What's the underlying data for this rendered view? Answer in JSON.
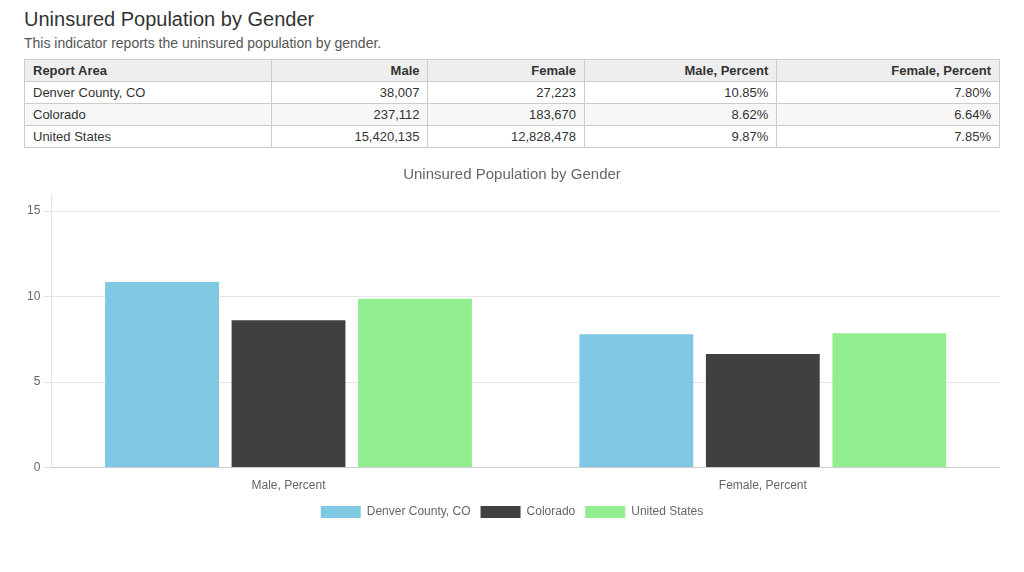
{
  "title": "Uninsured Population by Gender",
  "subtitle": "This indicator reports the uninsured population by gender.",
  "table": {
    "headers": [
      "Report Area",
      "Male",
      "Female",
      "Male, Percent",
      "Female, Percent"
    ],
    "rows": [
      [
        "Denver County, CO",
        "38,007",
        "27,223",
        "10.85%",
        "7.80%"
      ],
      [
        "Colorado",
        "237,112",
        "183,670",
        "8.62%",
        "6.64%"
      ],
      [
        "United States",
        "15,420,135",
        "12,828,478",
        "9.87%",
        "7.85%"
      ]
    ]
  },
  "chart_data": {
    "type": "bar",
    "title": "Uninsured Population by Gender",
    "categories": [
      "Male, Percent",
      "Female, Percent"
    ],
    "series": [
      {
        "name": "Denver County, CO",
        "color": "#7EC8E3",
        "values": [
          10.85,
          7.8
        ]
      },
      {
        "name": "Colorado",
        "color": "#404040",
        "values": [
          8.62,
          6.64
        ]
      },
      {
        "name": "United States",
        "color": "#90EE90",
        "values": [
          9.87,
          7.85
        ]
      }
    ],
    "ylim": [
      0,
      16
    ],
    "yticks": [
      0,
      5,
      10,
      15
    ],
    "grid": true,
    "legend": "bottom"
  }
}
